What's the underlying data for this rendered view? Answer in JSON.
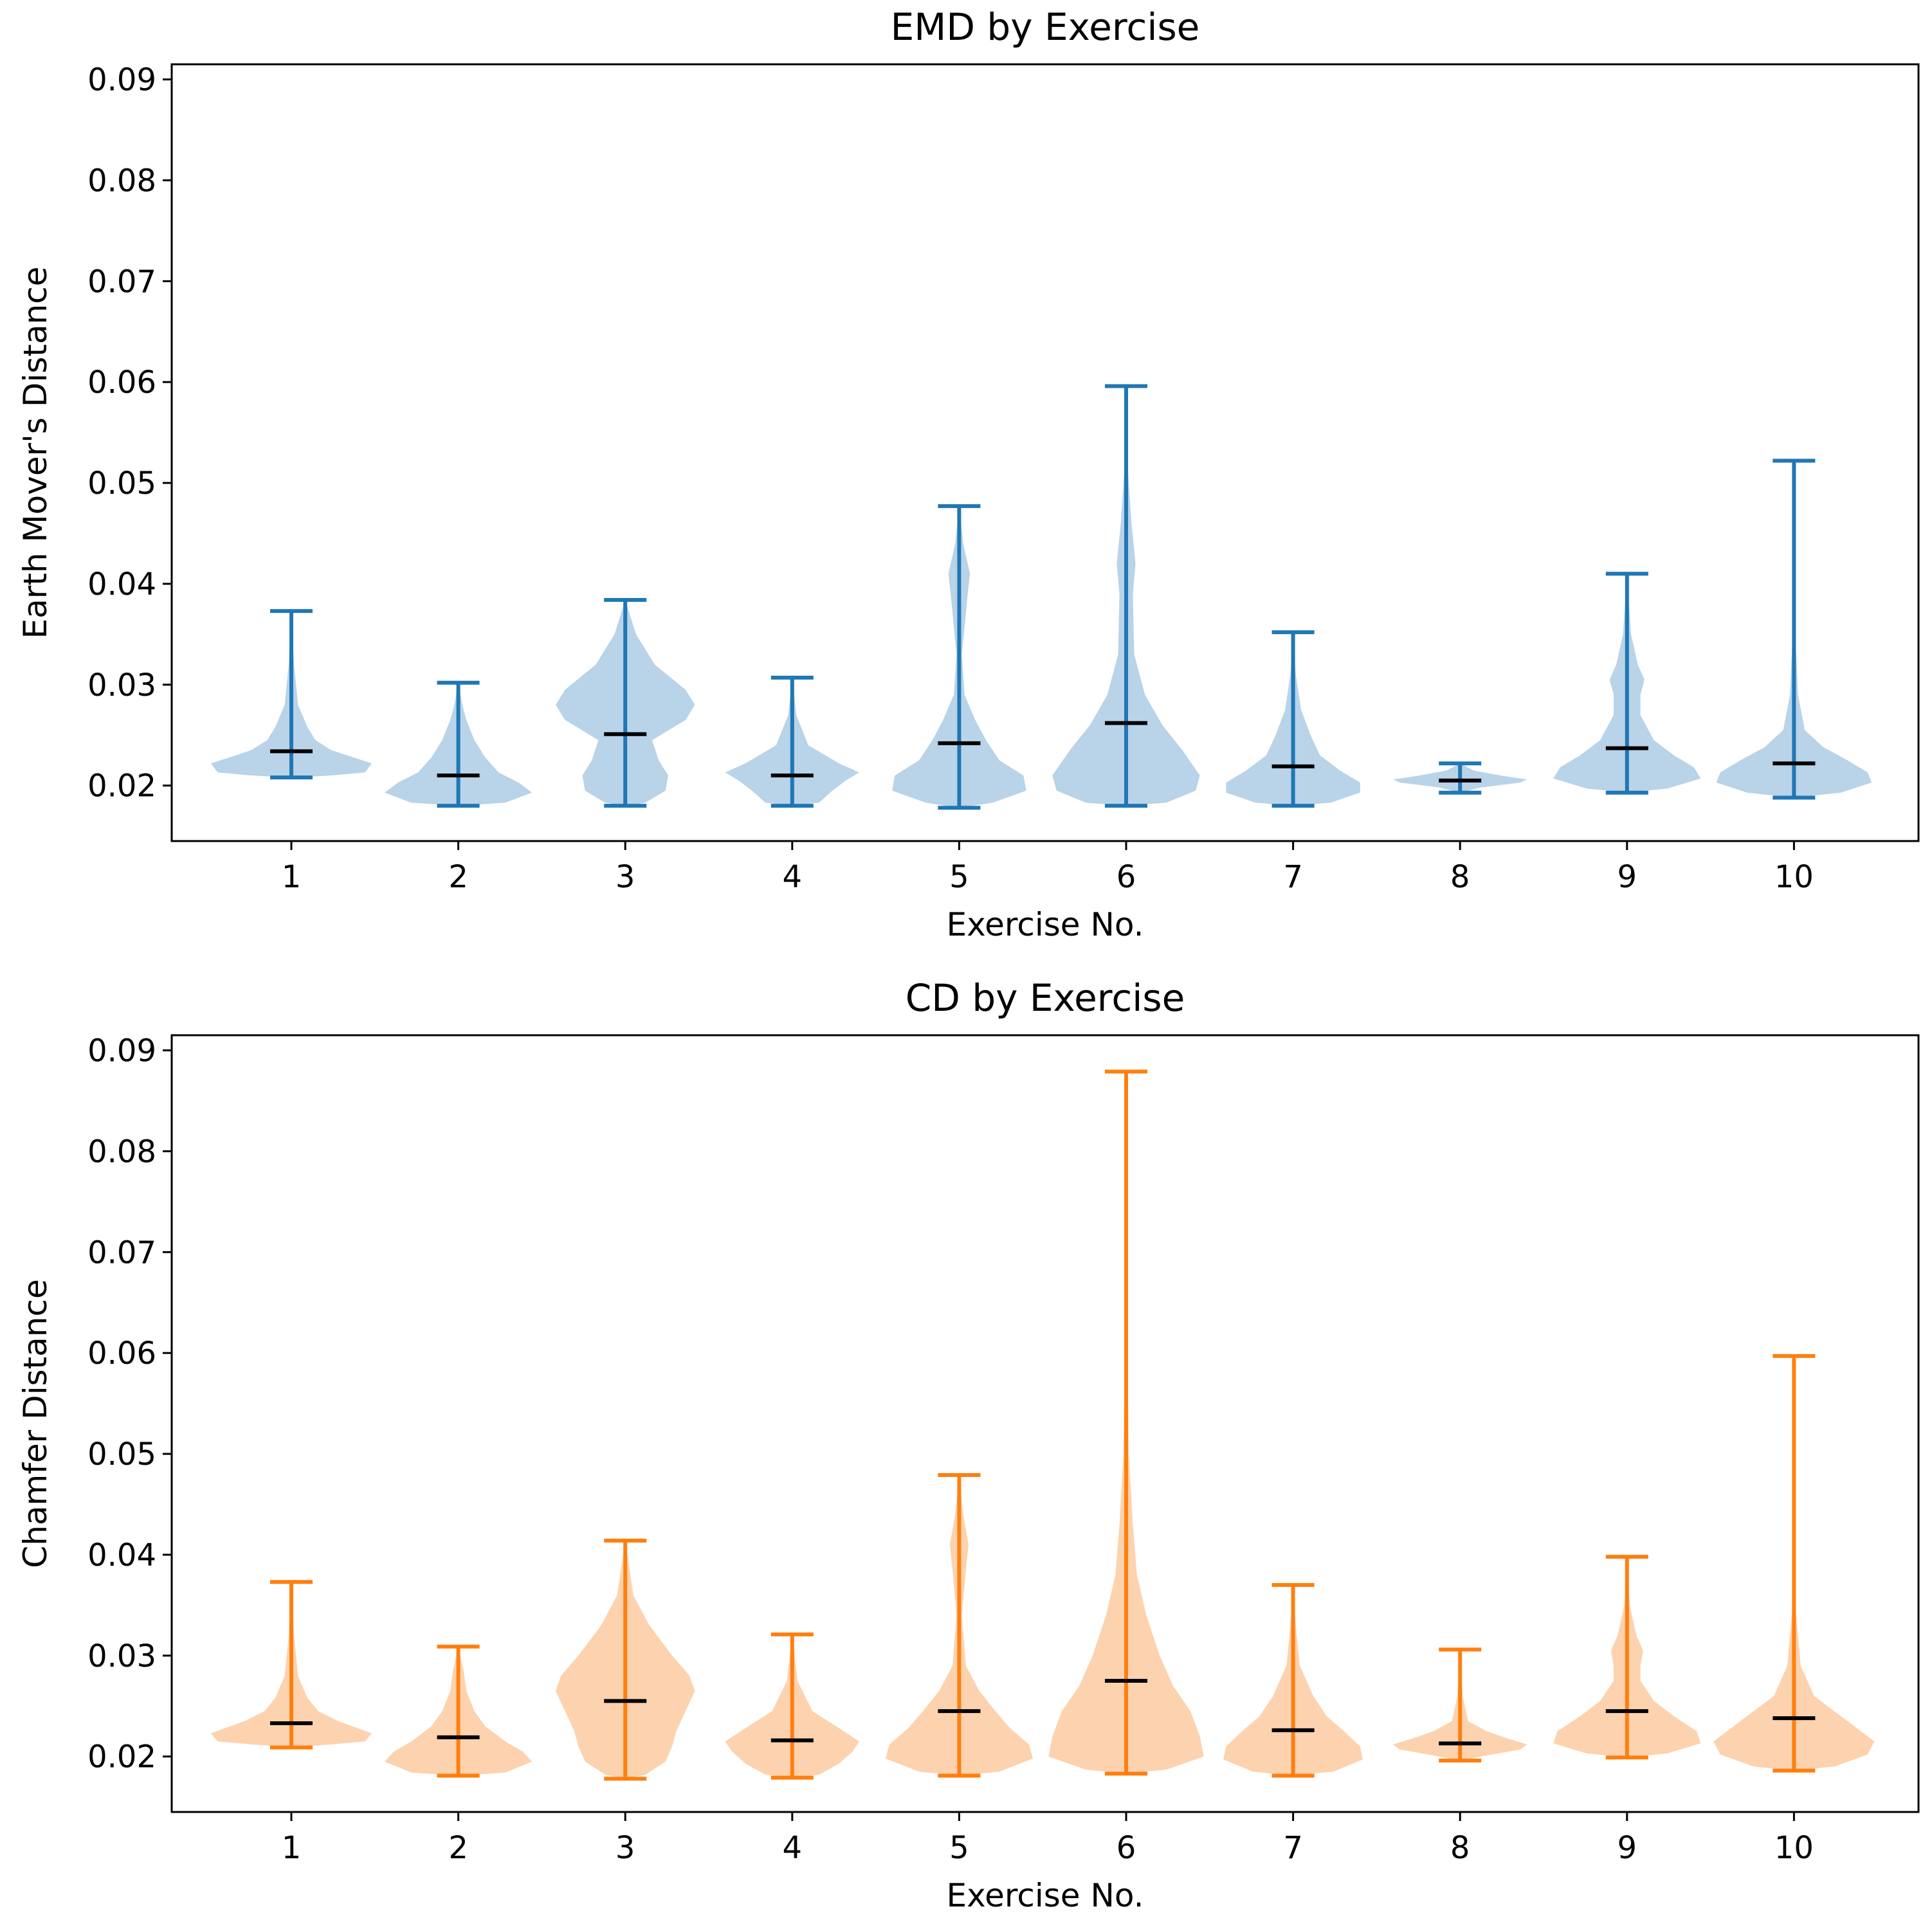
{
  "chart_data": [
    {
      "type": "violin",
      "title": "EMD by Exercise",
      "xlabel": "Exercise No.",
      "ylabel": "Earth Mover's Distance",
      "ylim": [
        0.0145,
        0.0915
      ],
      "yticks": [
        "0.02",
        "0.03",
        "0.04",
        "0.05",
        "0.06",
        "0.07",
        "0.08",
        "0.09"
      ],
      "categories": [
        "1",
        "2",
        "3",
        "4",
        "5",
        "6",
        "7",
        "8",
        "9",
        "10"
      ],
      "color": "#1f77b4",
      "fill_color": "#b9d3e8",
      "median_color": "#000000",
      "grid": false,
      "series": [
        {
          "name": "1",
          "min": 0.0208,
          "max": 0.0373,
          "median": 0.0234,
          "density": [
            [
              0.0208,
              0.0
            ],
            [
              0.021,
              0.3
            ],
            [
              0.0213,
              0.55
            ],
            [
              0.0222,
              0.6
            ],
            [
              0.0235,
              0.3
            ],
            [
              0.0245,
              0.18
            ],
            [
              0.0258,
              0.12
            ],
            [
              0.028,
              0.05
            ],
            [
              0.032,
              0.02
            ],
            [
              0.0373,
              0.0
            ]
          ]
        },
        {
          "name": "2",
          "min": 0.018,
          "max": 0.0302,
          "median": 0.021,
          "density": [
            [
              0.018,
              0.0
            ],
            [
              0.0183,
              0.35
            ],
            [
              0.0193,
              0.55
            ],
            [
              0.0203,
              0.45
            ],
            [
              0.0213,
              0.3
            ],
            [
              0.0228,
              0.2
            ],
            [
              0.0245,
              0.12
            ],
            [
              0.0265,
              0.06
            ],
            [
              0.028,
              0.03
            ],
            [
              0.0302,
              0.0
            ]
          ]
        },
        {
          "name": "3",
          "min": 0.018,
          "max": 0.0384,
          "median": 0.0251,
          "density": [
            [
              0.018,
              0.0
            ],
            [
              0.0183,
              0.15
            ],
            [
              0.0195,
              0.3
            ],
            [
              0.021,
              0.32
            ],
            [
              0.0225,
              0.25
            ],
            [
              0.0245,
              0.2
            ],
            [
              0.0265,
              0.45
            ],
            [
              0.028,
              0.52
            ],
            [
              0.0295,
              0.45
            ],
            [
              0.032,
              0.22
            ],
            [
              0.035,
              0.08
            ],
            [
              0.0384,
              0.0
            ]
          ]
        },
        {
          "name": "4",
          "min": 0.018,
          "max": 0.0307,
          "median": 0.021,
          "density": [
            [
              0.018,
              0.0
            ],
            [
              0.0183,
              0.2
            ],
            [
              0.0195,
              0.3
            ],
            [
              0.0205,
              0.4
            ],
            [
              0.0213,
              0.5
            ],
            [
              0.0222,
              0.35
            ],
            [
              0.024,
              0.12
            ],
            [
              0.027,
              0.03
            ],
            [
              0.0307,
              0.0
            ]
          ]
        },
        {
          "name": "5",
          "min": 0.0178,
          "max": 0.0477,
          "median": 0.0242,
          "density": [
            [
              0.0178,
              0.0
            ],
            [
              0.0183,
              0.25
            ],
            [
              0.0195,
              0.5
            ],
            [
              0.021,
              0.48
            ],
            [
              0.0225,
              0.3
            ],
            [
              0.0245,
              0.2
            ],
            [
              0.0265,
              0.12
            ],
            [
              0.029,
              0.04
            ],
            [
              0.033,
              0.02
            ],
            [
              0.0385,
              0.06
            ],
            [
              0.041,
              0.08
            ],
            [
              0.044,
              0.03
            ],
            [
              0.0477,
              0.0
            ]
          ]
        },
        {
          "name": "6",
          "min": 0.018,
          "max": 0.0596,
          "median": 0.0262,
          "density": [
            [
              0.018,
              0.0
            ],
            [
              0.0183,
              0.3
            ],
            [
              0.0195,
              0.52
            ],
            [
              0.021,
              0.55
            ],
            [
              0.0235,
              0.42
            ],
            [
              0.026,
              0.27
            ],
            [
              0.029,
              0.14
            ],
            [
              0.033,
              0.06
            ],
            [
              0.039,
              0.05
            ],
            [
              0.042,
              0.07
            ],
            [
              0.046,
              0.04
            ],
            [
              0.052,
              0.01
            ],
            [
              0.0596,
              0.0
            ]
          ]
        },
        {
          "name": "7",
          "min": 0.018,
          "max": 0.0352,
          "median": 0.0219,
          "density": [
            [
              0.018,
              0.0
            ],
            [
              0.0183,
              0.28
            ],
            [
              0.0193,
              0.5
            ],
            [
              0.0203,
              0.5
            ],
            [
              0.0215,
              0.35
            ],
            [
              0.023,
              0.2
            ],
            [
              0.025,
              0.13
            ],
            [
              0.0275,
              0.06
            ],
            [
              0.031,
              0.02
            ],
            [
              0.0352,
              0.0
            ]
          ]
        },
        {
          "name": "8",
          "min": 0.0193,
          "max": 0.0222,
          "median": 0.0205,
          "density": [
            [
              0.0193,
              0.0
            ],
            [
              0.0198,
              0.15
            ],
            [
              0.0203,
              0.45
            ],
            [
              0.0206,
              0.5
            ],
            [
              0.021,
              0.3
            ],
            [
              0.0215,
              0.1
            ],
            [
              0.0222,
              0.0
            ]
          ]
        },
        {
          "name": "9",
          "min": 0.0193,
          "max": 0.041,
          "median": 0.0237,
          "density": [
            [
              0.0193,
              0.0
            ],
            [
              0.0197,
              0.3
            ],
            [
              0.0207,
              0.55
            ],
            [
              0.0218,
              0.5
            ],
            [
              0.023,
              0.35
            ],
            [
              0.0245,
              0.2
            ],
            [
              0.027,
              0.1
            ],
            [
              0.029,
              0.1
            ],
            [
              0.0305,
              0.13
            ],
            [
              0.032,
              0.08
            ],
            [
              0.035,
              0.03
            ],
            [
              0.041,
              0.0
            ]
          ]
        },
        {
          "name": "10",
          "min": 0.0188,
          "max": 0.0522,
          "median": 0.0222,
          "density": [
            [
              0.0188,
              0.0
            ],
            [
              0.0193,
              0.35
            ],
            [
              0.0203,
              0.58
            ],
            [
              0.0213,
              0.55
            ],
            [
              0.0225,
              0.4
            ],
            [
              0.0238,
              0.22
            ],
            [
              0.0255,
              0.08
            ],
            [
              0.029,
              0.03
            ],
            [
              0.035,
              0.01
            ],
            [
              0.0522,
              0.0
            ]
          ]
        }
      ]
    },
    {
      "type": "violin",
      "title": "CD by Exercise",
      "xlabel": "Exercise No.",
      "ylabel": "Chamfer Distance",
      "ylim": [
        0.0145,
        0.0915
      ],
      "yticks": [
        "0.02",
        "0.03",
        "0.04",
        "0.05",
        "0.06",
        "0.07",
        "0.08",
        "0.09"
      ],
      "categories": [
        "1",
        "2",
        "3",
        "4",
        "5",
        "6",
        "7",
        "8",
        "9",
        "10"
      ],
      "color": "#ff7f0e",
      "fill_color": "#fdd2ae",
      "median_color": "#000000",
      "grid": false,
      "series": [
        {
          "name": "1",
          "min": 0.0209,
          "max": 0.0373,
          "median": 0.0233,
          "density": [
            [
              0.0209,
              0.0
            ],
            [
              0.0212,
              0.3
            ],
            [
              0.0215,
              0.55
            ],
            [
              0.0223,
              0.6
            ],
            [
              0.0235,
              0.35
            ],
            [
              0.0245,
              0.2
            ],
            [
              0.0258,
              0.12
            ],
            [
              0.028,
              0.05
            ],
            [
              0.032,
              0.02
            ],
            [
              0.0373,
              0.0
            ]
          ]
        },
        {
          "name": "2",
          "min": 0.0181,
          "max": 0.0309,
          "median": 0.0219,
          "density": [
            [
              0.0181,
              0.0
            ],
            [
              0.0184,
              0.35
            ],
            [
              0.0195,
              0.55
            ],
            [
              0.0205,
              0.48
            ],
            [
              0.0215,
              0.35
            ],
            [
              0.023,
              0.2
            ],
            [
              0.0245,
              0.12
            ],
            [
              0.0265,
              0.06
            ],
            [
              0.0285,
              0.04
            ],
            [
              0.0309,
              0.0
            ]
          ]
        },
        {
          "name": "3",
          "min": 0.0178,
          "max": 0.0414,
          "median": 0.0255,
          "density": [
            [
              0.0178,
              0.0
            ],
            [
              0.0182,
              0.15
            ],
            [
              0.0195,
              0.3
            ],
            [
              0.021,
              0.35
            ],
            [
              0.0225,
              0.38
            ],
            [
              0.0245,
              0.45
            ],
            [
              0.0265,
              0.52
            ],
            [
              0.028,
              0.48
            ],
            [
              0.03,
              0.35
            ],
            [
              0.033,
              0.18
            ],
            [
              0.036,
              0.06
            ],
            [
              0.0414,
              0.0
            ]
          ]
        },
        {
          "name": "4",
          "min": 0.0179,
          "max": 0.0321,
          "median": 0.0216,
          "density": [
            [
              0.0179,
              0.0
            ],
            [
              0.0182,
              0.2
            ],
            [
              0.0193,
              0.35
            ],
            [
              0.0205,
              0.45
            ],
            [
              0.0215,
              0.5
            ],
            [
              0.0228,
              0.35
            ],
            [
              0.0245,
              0.15
            ],
            [
              0.0275,
              0.04
            ],
            [
              0.0321,
              0.0
            ]
          ]
        },
        {
          "name": "5",
          "min": 0.0181,
          "max": 0.0479,
          "median": 0.0245,
          "density": [
            [
              0.0181,
              0.0
            ],
            [
              0.0185,
              0.3
            ],
            [
              0.0198,
              0.55
            ],
            [
              0.0212,
              0.52
            ],
            [
              0.0228,
              0.38
            ],
            [
              0.0245,
              0.27
            ],
            [
              0.0265,
              0.15
            ],
            [
              0.029,
              0.05
            ],
            [
              0.034,
              0.02
            ],
            [
              0.0385,
              0.05
            ],
            [
              0.041,
              0.07
            ],
            [
              0.044,
              0.03
            ],
            [
              0.0479,
              0.0
            ]
          ]
        },
        {
          "name": "6",
          "min": 0.0183,
          "max": 0.0879,
          "median": 0.0275,
          "density": [
            [
              0.0183,
              0.0
            ],
            [
              0.0187,
              0.3
            ],
            [
              0.02,
              0.58
            ],
            [
              0.022,
              0.55
            ],
            [
              0.0245,
              0.48
            ],
            [
              0.027,
              0.35
            ],
            [
              0.03,
              0.25
            ],
            [
              0.034,
              0.15
            ],
            [
              0.038,
              0.08
            ],
            [
              0.043,
              0.05
            ],
            [
              0.05,
              0.02
            ],
            [
              0.06,
              0.01
            ],
            [
              0.0879,
              0.0
            ]
          ]
        },
        {
          "name": "7",
          "min": 0.0181,
          "max": 0.037,
          "median": 0.0226,
          "density": [
            [
              0.0181,
              0.0
            ],
            [
              0.0185,
              0.3
            ],
            [
              0.0197,
              0.52
            ],
            [
              0.021,
              0.5
            ],
            [
              0.0225,
              0.38
            ],
            [
              0.024,
              0.25
            ],
            [
              0.026,
              0.15
            ],
            [
              0.029,
              0.05
            ],
            [
              0.033,
              0.02
            ],
            [
              0.037,
              0.0
            ]
          ]
        },
        {
          "name": "8",
          "min": 0.0196,
          "max": 0.0306,
          "median": 0.0213,
          "density": [
            [
              0.0196,
              0.0
            ],
            [
              0.0201,
              0.2
            ],
            [
              0.0207,
              0.45
            ],
            [
              0.0212,
              0.5
            ],
            [
              0.0218,
              0.35
            ],
            [
              0.0225,
              0.2
            ],
            [
              0.0235,
              0.06
            ],
            [
              0.026,
              0.02
            ],
            [
              0.0306,
              0.0
            ]
          ]
        },
        {
          "name": "9",
          "min": 0.0199,
          "max": 0.0398,
          "median": 0.0245,
          "density": [
            [
              0.0199,
              0.0
            ],
            [
              0.0203,
              0.3
            ],
            [
              0.0213,
              0.55
            ],
            [
              0.0225,
              0.52
            ],
            [
              0.024,
              0.35
            ],
            [
              0.0255,
              0.2
            ],
            [
              0.0275,
              0.1
            ],
            [
              0.029,
              0.1
            ],
            [
              0.0305,
              0.12
            ],
            [
              0.032,
              0.07
            ],
            [
              0.035,
              0.02
            ],
            [
              0.0398,
              0.0
            ]
          ]
        },
        {
          "name": "10",
          "min": 0.0186,
          "max": 0.0597,
          "median": 0.0238,
          "density": [
            [
              0.0186,
              0.0
            ],
            [
              0.019,
              0.3
            ],
            [
              0.0202,
              0.55
            ],
            [
              0.0215,
              0.6
            ],
            [
              0.023,
              0.45
            ],
            [
              0.0245,
              0.3
            ],
            [
              0.026,
              0.15
            ],
            [
              0.029,
              0.05
            ],
            [
              0.035,
              0.01
            ],
            [
              0.0597,
              0.0
            ]
          ]
        }
      ]
    }
  ]
}
